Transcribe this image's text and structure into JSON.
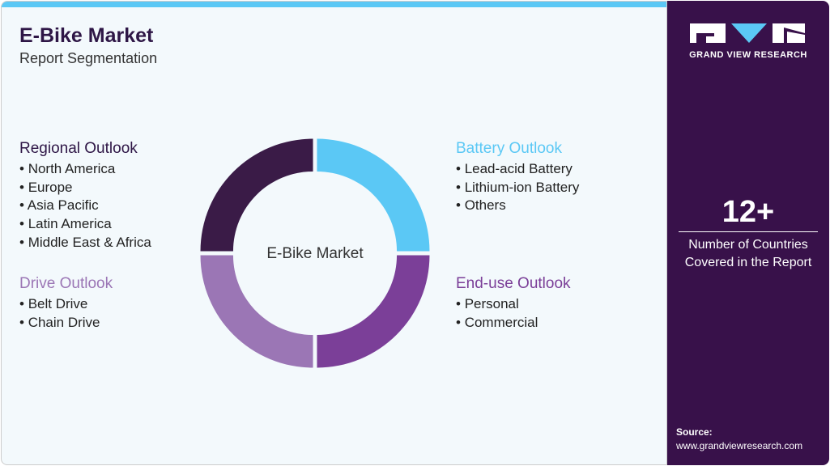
{
  "header": {
    "title": "E-Bike Market",
    "subtitle": "Report Segmentation"
  },
  "center_label": "E-Bike Market",
  "segments": [
    {
      "title": "Regional Outlook",
      "color": "#2e1646",
      "items": [
        "North America",
        "Europe",
        "Asia Pacific",
        "Latin America",
        "Middle East & Africa"
      ]
    },
    {
      "title": "Drive Outlook",
      "color": "#9b76b5",
      "items": [
        "Belt Drive",
        "Chain Drive"
      ]
    },
    {
      "title": "Battery Outlook",
      "color": "#5bc8f5",
      "items": [
        "Lead-acid Battery",
        "Lithium-ion Battery",
        "Others"
      ]
    },
    {
      "title": "End-use Outlook",
      "color": "#7b3f98",
      "items": [
        "Personal",
        "Commercial"
      ]
    }
  ],
  "donut_colors": [
    "#5bc8f5",
    "#7b3f98",
    "#9b76b5",
    "#3a1b47"
  ],
  "sidebar": {
    "brand": "GRAND VIEW RESEARCH",
    "stat": "12+",
    "stat_label": "Number of Countries Covered in the Report",
    "source_label": "Source:",
    "source_url": "www.grandviewresearch.com"
  }
}
